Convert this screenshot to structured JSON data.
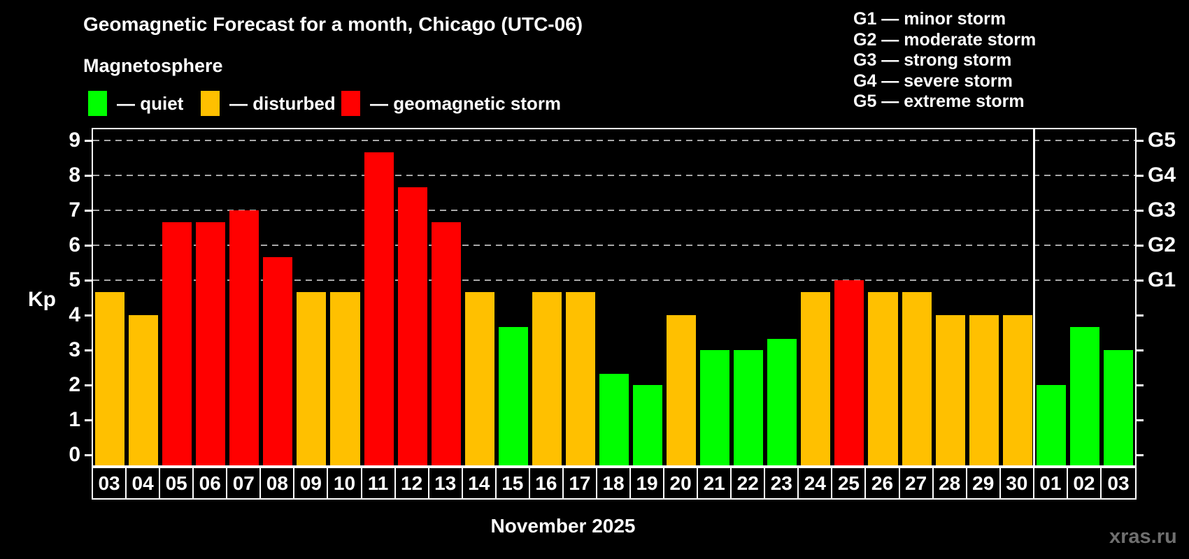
{
  "title": "Geomagnetic Forecast for a month, Chicago (UTC-06)",
  "subtitle": "Magnetosphere",
  "legend": {
    "items": [
      {
        "label": "— quiet",
        "status": "quiet"
      },
      {
        "label": "— disturbed",
        "status": "disturbed"
      },
      {
        "label": "— geomagnetic storm",
        "status": "storm"
      }
    ]
  },
  "g_legend": [
    "G1 — minor storm",
    "G2 — moderate storm",
    "G3 — strong storm",
    "G4 — severe storm",
    "G5 — extreme storm"
  ],
  "colors": {
    "quiet": "#00ff00",
    "disturbed": "#ffc000",
    "storm": "#ff0000",
    "background": "#000000",
    "text": "#ffffff",
    "grid": "#a8a8a8",
    "axis": "#ffffff",
    "watermark": "#6f6f6f"
  },
  "chart_data": {
    "type": "bar",
    "title": "Geomagnetic Forecast for a month, Chicago (UTC-06)",
    "subtitle": "Magnetosphere",
    "xlabel": "November 2025",
    "ylabel": "Kp",
    "ylim": [
      0,
      9.4
    ],
    "yticks": [
      0,
      1,
      2,
      3,
      4,
      5,
      6,
      7,
      8,
      9
    ],
    "gridlines": [
      5,
      6,
      7,
      8,
      9
    ],
    "grid_style": "horizontal dashed gray lines at Kp 5-9 only",
    "legend_position": "top-left",
    "categories": [
      "03",
      "04",
      "05",
      "06",
      "07",
      "08",
      "09",
      "10",
      "11",
      "12",
      "13",
      "14",
      "15",
      "16",
      "17",
      "18",
      "19",
      "20",
      "21",
      "22",
      "23",
      "24",
      "25",
      "26",
      "27",
      "28",
      "29",
      "30",
      "01",
      "02",
      "03"
    ],
    "series": [
      {
        "name": "Kp forecast",
        "values": [
          4.67,
          4,
          6.67,
          6.67,
          7,
          5.67,
          4.67,
          4.67,
          8.67,
          7.67,
          6.67,
          4.67,
          3.67,
          4.67,
          4.67,
          2.33,
          2,
          4,
          3,
          3,
          3.33,
          4.67,
          5,
          4.67,
          4.67,
          4,
          4,
          4,
          2,
          3.67,
          3
        ]
      }
    ],
    "bar_status": [
      "disturbed",
      "disturbed",
      "storm",
      "storm",
      "storm",
      "storm",
      "disturbed",
      "disturbed",
      "storm",
      "storm",
      "storm",
      "disturbed",
      "quiet",
      "disturbed",
      "disturbed",
      "quiet",
      "quiet",
      "disturbed",
      "quiet",
      "quiet",
      "quiet",
      "disturbed",
      "storm",
      "disturbed",
      "disturbed",
      "disturbed",
      "disturbed",
      "disturbed",
      "quiet",
      "quiet",
      "quiet"
    ],
    "status_colors": {
      "quiet": "#00ff00",
      "disturbed": "#ffc000",
      "storm": "#ff0000"
    },
    "right_axis": [
      {
        "value": 5,
        "label": "G1"
      },
      {
        "value": 6,
        "label": "G2"
      },
      {
        "value": 7,
        "label": "G3"
      },
      {
        "value": 8,
        "label": "G4"
      },
      {
        "value": 9,
        "label": "G5"
      }
    ],
    "month_separator_after_index": 27
  },
  "footer": {
    "month_label": "November 2025",
    "watermark": "xras.ru"
  }
}
